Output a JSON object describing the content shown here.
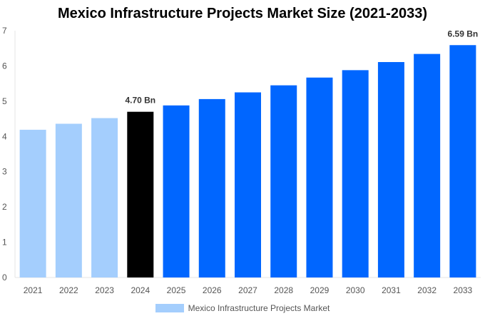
{
  "chart_data": {
    "type": "bar",
    "title": "Mexico Infrastructure Projects Market Size (2021-2033)",
    "categories": [
      "2021",
      "2022",
      "2023",
      "2024",
      "2025",
      "2026",
      "2027",
      "2028",
      "2029",
      "2030",
      "2031",
      "2032",
      "2033"
    ],
    "values": [
      4.19,
      4.36,
      4.52,
      4.7,
      4.88,
      5.06,
      5.25,
      5.45,
      5.67,
      5.88,
      6.11,
      6.34,
      6.59
    ],
    "ylim": [
      0,
      7
    ],
    "yticks": [
      0,
      1,
      2,
      3,
      4,
      5,
      6,
      7
    ],
    "data_labels": {
      "2024": "4.70 Bn",
      "2033": "6.59 Bn"
    },
    "legend": {
      "label": "Mexico Infrastructure Projects Market",
      "placement": "bottom"
    },
    "colors": {
      "historical": "#a4cefd",
      "current": "#000000",
      "forecast": "#0066ff"
    },
    "grid": false
  }
}
